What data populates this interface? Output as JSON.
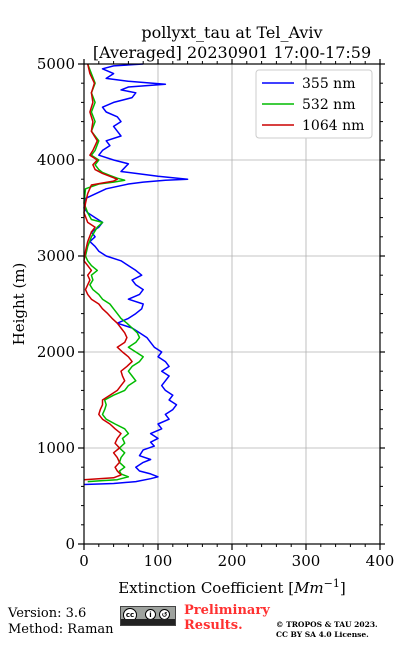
{
  "chart_data": {
    "type": "line",
    "title_line1": "pollyxt_tau at Tel_Aviv",
    "title_line2": "[Averaged] 20230901 17:00-17:59",
    "xlabel": "Extinction Coefficient [Mm⁻¹]",
    "ylabel": "Height (m)",
    "xlim": [
      0,
      400
    ],
    "ylim": [
      0,
      5000
    ],
    "xticks": [
      "0",
      "100",
      "200",
      "300",
      "400"
    ],
    "yticks": [
      "0",
      "1000",
      "2000",
      "3000",
      "4000",
      "5000"
    ],
    "grid": true,
    "legend_position": "top-right",
    "series": [
      {
        "name": "355 nm",
        "color": "#0000ff",
        "points": [
          [
            0,
            620
          ],
          [
            40,
            630
          ],
          [
            70,
            650
          ],
          [
            90,
            680
          ],
          [
            100,
            700
          ],
          [
            90,
            730
          ],
          [
            75,
            760
          ],
          [
            70,
            800
          ],
          [
            80,
            850
          ],
          [
            90,
            880
          ],
          [
            75,
            920
          ],
          [
            80,
            980
          ],
          [
            95,
            1020
          ],
          [
            90,
            1060
          ],
          [
            100,
            1100
          ],
          [
            90,
            1150
          ],
          [
            105,
            1200
          ],
          [
            100,
            1250
          ],
          [
            115,
            1300
          ],
          [
            110,
            1350
          ],
          [
            120,
            1400
          ],
          [
            125,
            1450
          ],
          [
            115,
            1500
          ],
          [
            120,
            1550
          ],
          [
            110,
            1600
          ],
          [
            105,
            1650
          ],
          [
            110,
            1700
          ],
          [
            115,
            1750
          ],
          [
            105,
            1800
          ],
          [
            115,
            1850
          ],
          [
            110,
            1900
          ],
          [
            100,
            1950
          ],
          [
            105,
            2000
          ],
          [
            95,
            2050
          ],
          [
            90,
            2100
          ],
          [
            85,
            2150
          ],
          [
            75,
            2200
          ],
          [
            65,
            2250
          ],
          [
            45,
            2300
          ],
          [
            60,
            2350
          ],
          [
            70,
            2400
          ],
          [
            78,
            2450
          ],
          [
            80,
            2500
          ],
          [
            60,
            2550
          ],
          [
            75,
            2600
          ],
          [
            80,
            2650
          ],
          [
            70,
            2700
          ],
          [
            65,
            2750
          ],
          [
            78,
            2800
          ],
          [
            70,
            2850
          ],
          [
            60,
            2900
          ],
          [
            50,
            2950
          ],
          [
            30,
            3000
          ],
          [
            20,
            3050
          ],
          [
            15,
            3100
          ],
          [
            8,
            3150
          ],
          [
            15,
            3200
          ],
          [
            10,
            3250
          ],
          [
            20,
            3300
          ],
          [
            25,
            3350
          ],
          [
            15,
            3400
          ],
          [
            5,
            3450
          ],
          [
            0,
            3500
          ],
          [
            2,
            3600
          ],
          [
            30,
            3700
          ],
          [
            60,
            3750
          ],
          [
            80,
            3770
          ],
          [
            110,
            3790
          ],
          [
            140,
            3800
          ],
          [
            100,
            3830
          ],
          [
            70,
            3860
          ],
          [
            50,
            3880
          ],
          [
            55,
            3920
          ],
          [
            60,
            3960
          ],
          [
            40,
            4000
          ],
          [
            20,
            4050
          ],
          [
            25,
            4100
          ],
          [
            35,
            4150
          ],
          [
            30,
            4200
          ],
          [
            50,
            4250
          ],
          [
            45,
            4300
          ],
          [
            40,
            4350
          ],
          [
            50,
            4400
          ],
          [
            45,
            4450
          ],
          [
            30,
            4500
          ],
          [
            25,
            4550
          ],
          [
            40,
            4600
          ],
          [
            65,
            4650
          ],
          [
            70,
            4700
          ],
          [
            50,
            4730
          ],
          [
            60,
            4760
          ],
          [
            110,
            4790
          ],
          [
            60,
            4820
          ],
          [
            30,
            4850
          ],
          [
            40,
            4900
          ],
          [
            25,
            4950
          ],
          [
            40,
            4980
          ],
          [
            80,
            5000
          ]
        ]
      },
      {
        "name": "532 nm",
        "color": "#00bb00",
        "points": [
          [
            5,
            650
          ],
          [
            25,
            660
          ],
          [
            45,
            670
          ],
          [
            60,
            700
          ],
          [
            50,
            730
          ],
          [
            48,
            760
          ],
          [
            55,
            800
          ],
          [
            48,
            850
          ],
          [
            50,
            900
          ],
          [
            55,
            950
          ],
          [
            48,
            1000
          ],
          [
            55,
            1050
          ],
          [
            52,
            1100
          ],
          [
            60,
            1150
          ],
          [
            55,
            1200
          ],
          [
            42,
            1250
          ],
          [
            30,
            1300
          ],
          [
            25,
            1350
          ],
          [
            28,
            1400
          ],
          [
            30,
            1450
          ],
          [
            28,
            1500
          ],
          [
            40,
            1550
          ],
          [
            55,
            1600
          ],
          [
            60,
            1650
          ],
          [
            70,
            1700
          ],
          [
            65,
            1750
          ],
          [
            60,
            1800
          ],
          [
            65,
            1850
          ],
          [
            75,
            1900
          ],
          [
            80,
            1950
          ],
          [
            70,
            2000
          ],
          [
            60,
            2050
          ],
          [
            70,
            2100
          ],
          [
            75,
            2150
          ],
          [
            72,
            2200
          ],
          [
            65,
            2250
          ],
          [
            58,
            2300
          ],
          [
            50,
            2350
          ],
          [
            45,
            2400
          ],
          [
            40,
            2450
          ],
          [
            35,
            2500
          ],
          [
            25,
            2550
          ],
          [
            20,
            2600
          ],
          [
            12,
            2650
          ],
          [
            8,
            2700
          ],
          [
            12,
            2750
          ],
          [
            10,
            2800
          ],
          [
            18,
            2850
          ],
          [
            10,
            2900
          ],
          [
            5,
            2950
          ],
          [
            2,
            3000
          ],
          [
            5,
            3100
          ],
          [
            10,
            3200
          ],
          [
            18,
            3300
          ],
          [
            25,
            3350
          ],
          [
            10,
            3380
          ],
          [
            5,
            3450
          ],
          [
            0,
            3550
          ],
          [
            2,
            3700
          ],
          [
            20,
            3750
          ],
          [
            40,
            3770
          ],
          [
            55,
            3790
          ],
          [
            45,
            3810
          ],
          [
            35,
            3840
          ],
          [
            25,
            3870
          ],
          [
            20,
            3900
          ],
          [
            15,
            3950
          ],
          [
            20,
            4000
          ],
          [
            10,
            4050
          ],
          [
            15,
            4100
          ],
          [
            20,
            4200
          ],
          [
            10,
            4300
          ],
          [
            15,
            4400
          ],
          [
            10,
            4500
          ],
          [
            15,
            4600
          ],
          [
            10,
            4700
          ],
          [
            15,
            4800
          ],
          [
            10,
            4900
          ],
          [
            5,
            5000
          ]
        ]
      },
      {
        "name": "1064 nm",
        "color": "#cc0000",
        "points": [
          [
            0,
            670
          ],
          [
            20,
            680
          ],
          [
            40,
            690
          ],
          [
            50,
            720
          ],
          [
            45,
            760
          ],
          [
            42,
            800
          ],
          [
            48,
            850
          ],
          [
            45,
            900
          ],
          [
            40,
            950
          ],
          [
            48,
            1000
          ],
          [
            42,
            1050
          ],
          [
            45,
            1100
          ],
          [
            50,
            1150
          ],
          [
            42,
            1200
          ],
          [
            35,
            1250
          ],
          [
            25,
            1300
          ],
          [
            20,
            1350
          ],
          [
            22,
            1400
          ],
          [
            25,
            1450
          ],
          [
            25,
            1500
          ],
          [
            35,
            1550
          ],
          [
            45,
            1600
          ],
          [
            50,
            1650
          ],
          [
            55,
            1700
          ],
          [
            52,
            1750
          ],
          [
            50,
            1800
          ],
          [
            58,
            1850
          ],
          [
            65,
            1900
          ],
          [
            60,
            1950
          ],
          [
            52,
            2000
          ],
          [
            45,
            2050
          ],
          [
            55,
            2100
          ],
          [
            58,
            2150
          ],
          [
            55,
            2200
          ],
          [
            50,
            2250
          ],
          [
            45,
            2300
          ],
          [
            38,
            2350
          ],
          [
            32,
            2400
          ],
          [
            25,
            2450
          ],
          [
            20,
            2500
          ],
          [
            10,
            2550
          ],
          [
            5,
            2600
          ],
          [
            2,
            2650
          ],
          [
            5,
            2700
          ],
          [
            8,
            2750
          ],
          [
            5,
            2800
          ],
          [
            10,
            2850
          ],
          [
            5,
            2900
          ],
          [
            0,
            2950
          ],
          [
            2,
            3050
          ],
          [
            5,
            3150
          ],
          [
            10,
            3250
          ],
          [
            15,
            3300
          ],
          [
            5,
            3350
          ],
          [
            0,
            3450
          ],
          [
            2,
            3550
          ],
          [
            5,
            3650
          ],
          [
            10,
            3740
          ],
          [
            25,
            3760
          ],
          [
            40,
            3780
          ],
          [
            45,
            3800
          ],
          [
            35,
            3830
          ],
          [
            25,
            3860
          ],
          [
            15,
            3900
          ],
          [
            12,
            3950
          ],
          [
            18,
            4000
          ],
          [
            8,
            4050
          ],
          [
            12,
            4100
          ],
          [
            18,
            4200
          ],
          [
            10,
            4300
          ],
          [
            12,
            4400
          ],
          [
            8,
            4500
          ],
          [
            12,
            4600
          ],
          [
            10,
            4700
          ],
          [
            14,
            4800
          ],
          [
            8,
            4900
          ],
          [
            5,
            5000
          ]
        ]
      }
    ]
  },
  "footer": {
    "version": "Version: 3.6",
    "method": "Method: Raman",
    "cc_symbol": "cc",
    "cc_by": "BY",
    "cc_sa": "SA",
    "preliminary_line1": "Preliminary",
    "preliminary_line2": "Results.",
    "copyright_line1": "© TROPOS & TAU 2023.",
    "copyright_line2": "CC BY SA 4.0 License.",
    "preliminary_color": "#ff3030"
  }
}
